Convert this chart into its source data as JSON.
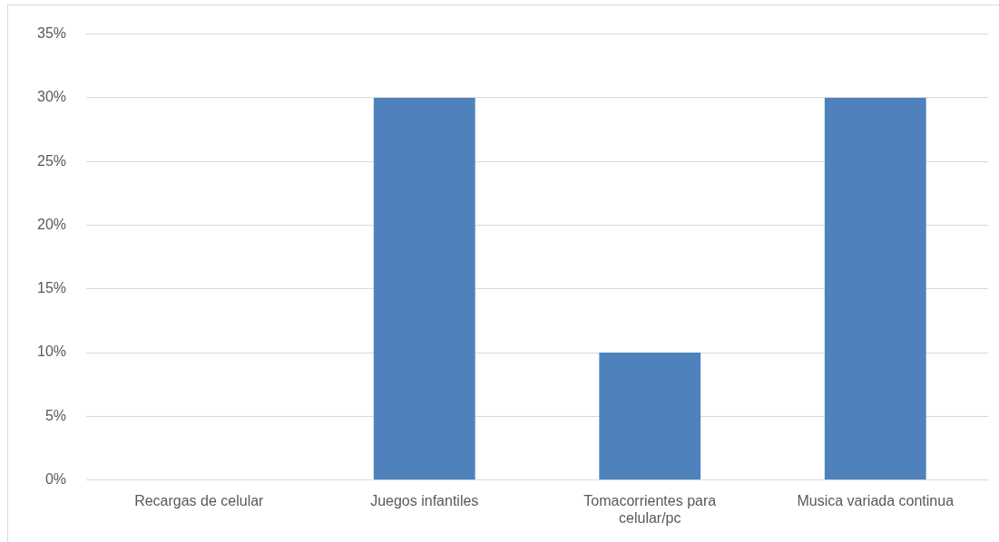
{
  "chart_data": {
    "type": "bar",
    "categories": [
      "Recargas de celular",
      "Juegos infantiles",
      "Tomacorrientes para celular/pc",
      "Musica variada continua"
    ],
    "values": [
      0,
      30,
      10,
      30
    ],
    "color": "#4f81bd",
    "ylim": [
      0,
      35
    ],
    "yticks": [
      {
        "value": 0,
        "label": "0%"
      },
      {
        "value": 5,
        "label": "5%"
      },
      {
        "value": 10,
        "label": "10%"
      },
      {
        "value": 15,
        "label": "15%"
      },
      {
        "value": 20,
        "label": "20%"
      },
      {
        "value": 25,
        "label": "25%"
      },
      {
        "value": 30,
        "label": "30%"
      },
      {
        "value": 35,
        "label": "35%"
      }
    ],
    "grid": "y",
    "legend": false
  }
}
